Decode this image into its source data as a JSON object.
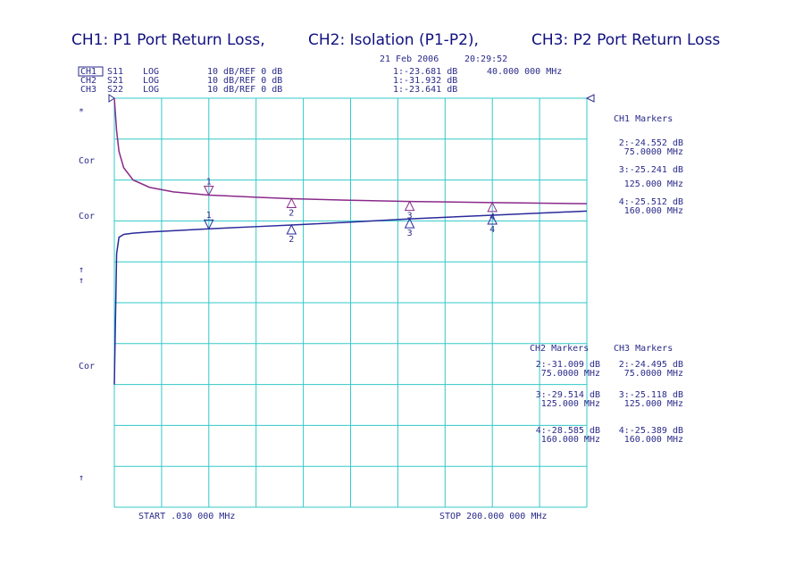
{
  "chart_data": {
    "type": "line",
    "titles": [
      "CH1: P1 Port Return Loss,",
      "CH2: Isolation (P1-P2),",
      "CH3: P2 Port Return Loss"
    ],
    "date": "21 Feb 2006",
    "time": "20:29:52",
    "channels": [
      {
        "label": "CH1",
        "param": "S11",
        "format": "LOG",
        "scale": "10 dB/REF 0 dB",
        "marker": "1:-23.681 dB"
      },
      {
        "label": "CH2",
        "param": "S21",
        "format": "LOG",
        "scale": "10 dB/REF 0 dB",
        "marker": "1:-31.932 dB"
      },
      {
        "label": "CH3",
        "param": "S22",
        "format": "LOG",
        "scale": "10 dB/REF 0 dB",
        "marker": "1:-23.641 dB"
      }
    ],
    "marker_freq": "40.000 000 MHz",
    "side_labels": [
      "*",
      "Cor",
      "Cor",
      "↑",
      "↑",
      "Cor",
      "↑"
    ],
    "start": "START .030 000 MHz",
    "stop": "STOP 200.000 000 MHz",
    "marker_lists": [
      {
        "title": "CH1 Markers",
        "entries": [
          [
            "2:-24.552 dB",
            "75.0000 MHz"
          ],
          [
            "3:-25.241 dB",
            "125.000 MHz"
          ],
          [
            "4:-25.512 dB",
            "160.000 MHz"
          ]
        ]
      },
      {
        "title": "CH2 Markers",
        "entries": [
          [
            "2:-31.009 dB",
            "75.0000 MHz"
          ],
          [
            "3:-29.514 dB",
            "125.000 MHz"
          ],
          [
            "4:-28.585 dB",
            "160.000 MHz"
          ]
        ]
      },
      {
        "title": "CH3 Markers",
        "entries": [
          [
            "2:-24.495 dB",
            "75.0000 MHz"
          ],
          [
            "3:-25.118 dB",
            "125.000 MHz"
          ],
          [
            "4:-25.389 dB",
            "160.000 MHz"
          ]
        ]
      }
    ],
    "xlim": [
      0.03,
      200
    ],
    "ylim": [
      -100,
      0
    ],
    "grid_divisions": 10,
    "grid_color": "#33c8c8",
    "x": [
      0.03,
      1,
      2,
      4,
      8,
      15,
      25,
      40,
      60,
      75,
      100,
      125,
      160,
      200
    ],
    "series": [
      {
        "name": "CH1",
        "color": "#8a2a8a",
        "values": [
          0,
          -8,
          -13,
          -17,
          -20,
          -21.8,
          -22.9,
          -23.68,
          -24.2,
          -24.55,
          -24.95,
          -25.24,
          -25.51,
          -25.8
        ]
      },
      {
        "name": "CH2",
        "color": "#2a2a9a",
        "values": [
          -70,
          -38,
          -34,
          -33.3,
          -33,
          -32.7,
          -32.4,
          -31.93,
          -31.4,
          -31.01,
          -30.3,
          -29.51,
          -28.59,
          -27.6
        ]
      }
    ],
    "marker_x": [
      40,
      75,
      125,
      160
    ],
    "marker_labels": [
      "1",
      "2",
      "3",
      "4"
    ]
  }
}
